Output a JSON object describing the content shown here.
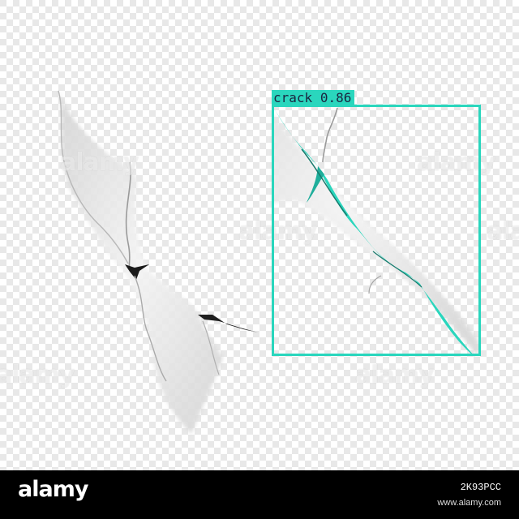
{
  "detection": {
    "label": "crack",
    "confidence": "0.86",
    "color": "#2ad6bd"
  },
  "watermark": {
    "text": "alamy"
  },
  "footer": {
    "brand": "alamy",
    "image_id": "2K93PCC",
    "url": "www.alamy.com"
  },
  "colors": {
    "checker_light": "#ffffff",
    "checker_dark": "#e6e6e6",
    "crack_highlight": "#2ad6bd"
  }
}
